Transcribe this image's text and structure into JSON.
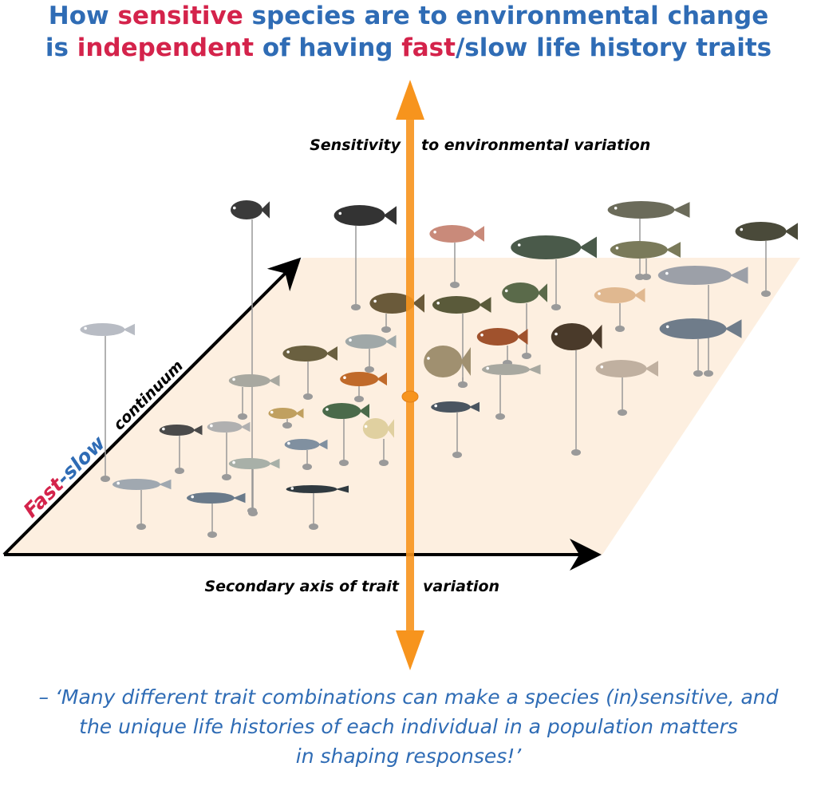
{
  "title": {
    "lines": [
      [
        {
          "text": "How ",
          "color": "#2f6cb5"
        },
        {
          "text": "sensitive",
          "color": "#d4234b"
        },
        {
          "text": " species are to environmental change",
          "color": "#2f6cb5"
        }
      ],
      [
        {
          "text": "is ",
          "color": "#2f6cb5"
        },
        {
          "text": "independent",
          "color": "#d4234b"
        },
        {
          "text": " of  having ",
          "color": "#2f6cb5"
        },
        {
          "text": "fast",
          "color": "#d4234b"
        },
        {
          "text": "/slow life history traits",
          "color": "#2f6cb5"
        }
      ]
    ]
  },
  "axes": {
    "vertical": {
      "left": "Sensitivity",
      "right": "to environmental variation"
    },
    "horizontal": {
      "left": "Secondary axis of trait",
      "right": "variation"
    },
    "diagonal": {
      "fast": "Fast",
      "slow": "-slow",
      "rest": "continuum"
    }
  },
  "quote": {
    "lines": [
      "– ‘Many different trait combinations can make a species (in)sensitive, and",
      "the unique life histories of each individual in a population matters",
      "in shaping responses!’"
    ]
  }
}
